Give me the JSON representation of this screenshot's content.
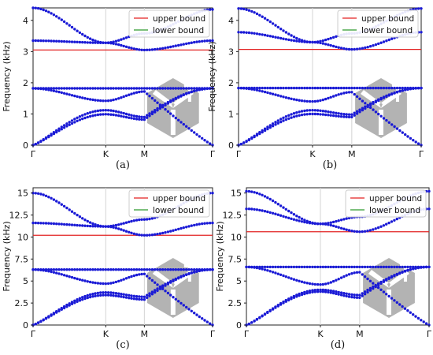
{
  "colors": {
    "upper_bound": "#e32222",
    "lower_bound": "#2f9a2f",
    "band_points": "#1a1ad6",
    "inset_fill": "#b3b3b3",
    "vertical_lines": "#d4d4d4"
  },
  "chart_data": [
    {
      "type": "scatter",
      "caption": "(a)",
      "ylabel": "Frequency (kHz)",
      "x_ticks": [
        "Γ",
        "K",
        "M",
        "Γ"
      ],
      "y_ticks": [
        "0",
        "1",
        "2",
        "3",
        "4"
      ],
      "ylim": [
        0,
        4.4
      ],
      "grid": "vertical lines at K and M",
      "legend": {
        "placement": "top-right",
        "entries": [
          "upper bound",
          "lower bound"
        ]
      },
      "upper_bound": 3.05,
      "lower_bound": 1.82,
      "bands_at_high_symmetry_points": [
        {
          "band": 1,
          "gamma": 0.0,
          "K": 0.99,
          "M": 0.82,
          "gamma_end": 1.82
        },
        {
          "band": 2,
          "gamma": 0.0,
          "K": 1.12,
          "M": 0.9,
          "gamma_end": 1.82
        },
        {
          "band": 3,
          "gamma": 1.82,
          "K": 1.42,
          "M": 1.72,
          "gamma_end": 0.0
        },
        {
          "band": 4,
          "gamma": 1.82,
          "K": 1.82,
          "M": 1.82,
          "gamma_end": 1.82
        },
        {
          "band": 5,
          "gamma": 3.35,
          "K": 3.28,
          "M": 3.05,
          "gamma_end": 3.35
        },
        {
          "band": 6,
          "gamma": 4.4,
          "K": 3.28,
          "M": 3.58,
          "gamma_end": 4.35
        }
      ]
    },
    {
      "type": "scatter",
      "caption": "(b)",
      "ylabel": "Frequency (kHz)",
      "x_ticks": [
        "Γ",
        "K",
        "M",
        "Γ"
      ],
      "y_ticks": [
        "0",
        "1",
        "2",
        "3",
        "4"
      ],
      "ylim": [
        0,
        4.4
      ],
      "grid": "vertical lines at K and M",
      "legend": {
        "placement": "top-right",
        "entries": [
          "upper bound",
          "lower bound"
        ]
      },
      "upper_bound": 3.07,
      "lower_bound": 1.83,
      "bands_at_high_symmetry_points": [
        {
          "band": 1,
          "gamma": 0.0,
          "K": 1.0,
          "M": 0.9,
          "gamma_end": 1.83
        },
        {
          "band": 2,
          "gamma": 0.0,
          "K": 1.12,
          "M": 0.98,
          "gamma_end": 1.83
        },
        {
          "band": 3,
          "gamma": 1.83,
          "K": 1.4,
          "M": 1.7,
          "gamma_end": 0.0
        },
        {
          "band": 4,
          "gamma": 1.83,
          "K": 1.83,
          "M": 1.83,
          "gamma_end": 1.83
        },
        {
          "band": 5,
          "gamma": 3.62,
          "K": 3.3,
          "M": 3.07,
          "gamma_end": 3.62
        },
        {
          "band": 6,
          "gamma": 4.38,
          "K": 3.3,
          "M": 3.58,
          "gamma_end": 4.38
        }
      ]
    },
    {
      "type": "scatter",
      "caption": "(c)",
      "ylabel": "Frequency (kHz)",
      "x_ticks": [
        "Γ",
        "K",
        "M",
        "Γ"
      ],
      "y_ticks": [
        "0",
        "2.5",
        "5",
        "7.5",
        "10",
        "12.5",
        "15"
      ],
      "ylim": [
        0,
        15.6
      ],
      "grid": "vertical lines at K and M",
      "legend": {
        "placement": "top-right",
        "entries": [
          "upper bound",
          "lower bound"
        ]
      },
      "upper_bound": 10.2,
      "lower_bound": 6.3,
      "bands_at_high_symmetry_points": [
        {
          "band": 1,
          "gamma": 0.0,
          "K": 3.4,
          "M": 2.9,
          "gamma_end": 6.3
        },
        {
          "band": 2,
          "gamma": 0.0,
          "K": 3.7,
          "M": 3.2,
          "gamma_end": 6.3
        },
        {
          "band": 3,
          "gamma": 6.3,
          "K": 4.7,
          "M": 5.8,
          "gamma_end": 0.0
        },
        {
          "band": 4,
          "gamma": 6.3,
          "K": 6.3,
          "M": 6.3,
          "gamma_end": 6.3
        },
        {
          "band": 5,
          "gamma": 11.6,
          "K": 11.2,
          "M": 10.2,
          "gamma_end": 11.6
        },
        {
          "band": 6,
          "gamma": 15.0,
          "K": 11.2,
          "M": 12.0,
          "gamma_end": 15.0
        }
      ]
    },
    {
      "type": "scatter",
      "caption": "(d)",
      "ylabel": "Frequency (kHz)",
      "x_ticks": [
        "Γ",
        "K",
        "M",
        "Γ"
      ],
      "y_ticks": [
        "0",
        "2.5",
        "5",
        "7.5",
        "10",
        "12.5",
        "15"
      ],
      "ylim": [
        0,
        15.6
      ],
      "grid": "vertical lines at K and M",
      "legend": {
        "placement": "top-right",
        "entries": [
          "upper bound",
          "lower bound"
        ]
      },
      "upper_bound": 10.6,
      "lower_bound": 6.6,
      "bands_at_high_symmetry_points": [
        {
          "band": 1,
          "gamma": 0.0,
          "K": 3.8,
          "M": 3.1,
          "gamma_end": 6.6
        },
        {
          "band": 2,
          "gamma": 0.0,
          "K": 4.0,
          "M": 3.4,
          "gamma_end": 6.6
        },
        {
          "band": 3,
          "gamma": 6.6,
          "K": 4.6,
          "M": 6.0,
          "gamma_end": 0.0
        },
        {
          "band": 4,
          "gamma": 6.6,
          "K": 6.6,
          "M": 6.6,
          "gamma_end": 6.6
        },
        {
          "band": 5,
          "gamma": 13.2,
          "K": 11.5,
          "M": 10.6,
          "gamma_end": 13.2
        },
        {
          "band": 6,
          "gamma": 15.2,
          "K": 11.5,
          "M": 12.3,
          "gamma_end": 15.2
        }
      ]
    }
  ]
}
